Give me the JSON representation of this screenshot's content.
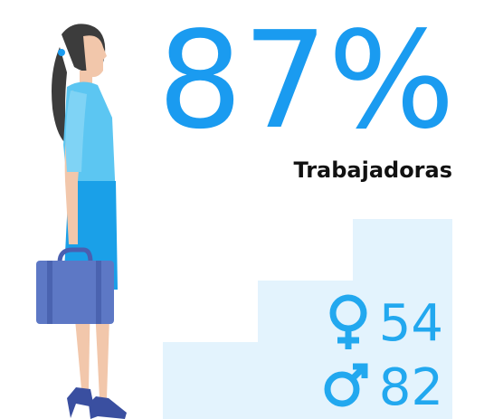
{
  "headline": {
    "value": "87%",
    "label": "Trabajadoras"
  },
  "stats": [
    {
      "value": "54"
    },
    {
      "value": "82"
    }
  ]
}
